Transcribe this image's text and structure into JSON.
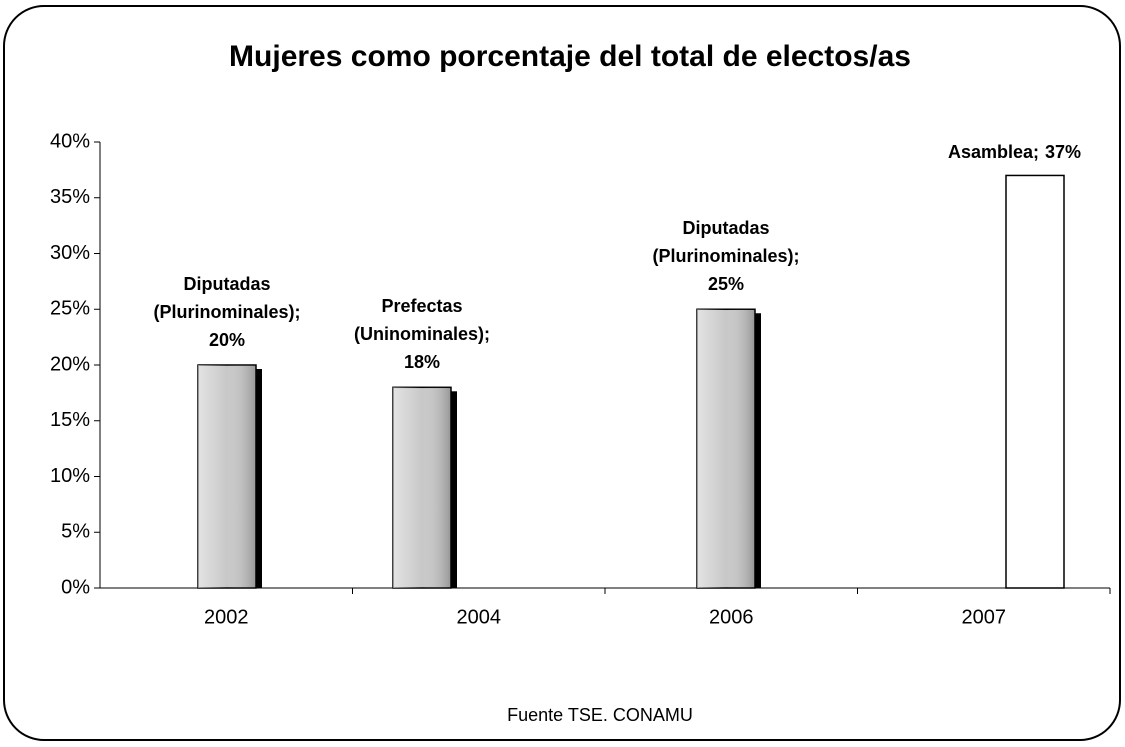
{
  "chart_data": {
    "type": "bar",
    "title": "Mujeres como porcentaje del total de electos/as",
    "categories": [
      "2002",
      "2004",
      "2006",
      "2007"
    ],
    "values": [
      20,
      18,
      25,
      37
    ],
    "value_labels": [
      "20%",
      "18%",
      "25%",
      "37%"
    ],
    "label_lines": [
      [
        "Diputadas",
        "(Plurinominales);"
      ],
      [
        "Prefectas",
        "(Uninominales);"
      ],
      [
        "Diputadas",
        "(Plurinominales);"
      ],
      [
        "Asamblea;"
      ]
    ],
    "colors": [
      "#c8c8c8",
      "#c8c8c8",
      "#c8c8c8",
      "#ffffff"
    ],
    "ylim": [
      0,
      40
    ],
    "yticks": [
      {
        "value": 0,
        "label": "0%"
      },
      {
        "value": 5,
        "label": "5%"
      },
      {
        "value": 10,
        "label": "10%"
      },
      {
        "value": 15,
        "label": "15%"
      },
      {
        "value": 20,
        "label": "20%"
      },
      {
        "value": 25,
        "label": "25%"
      },
      {
        "value": 30,
        "label": "30%"
      },
      {
        "value": 35,
        "label": "35%"
      },
      {
        "value": 40,
        "label": "40%"
      }
    ],
    "grid": false,
    "source": "Fuente TSE. CONAMU"
  }
}
